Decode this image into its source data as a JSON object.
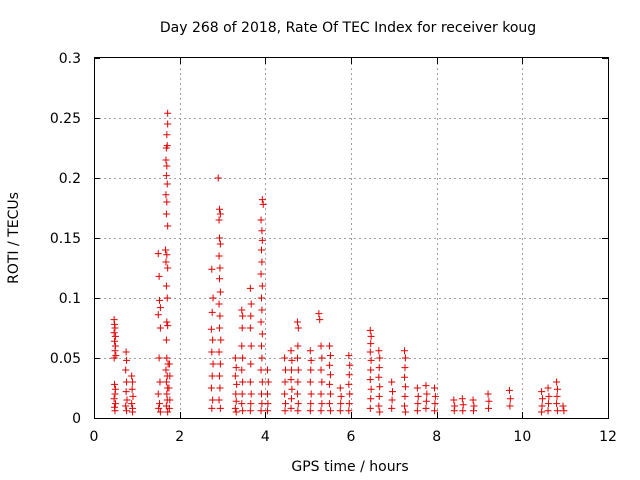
{
  "chart_data": {
    "type": "scatter",
    "title": "Day 268 of 2018, Rate Of TEC Index for receiver koug",
    "xlabel": "GPS time / hours",
    "ylabel": "ROTI / TECUs",
    "xlim": [
      0,
      12
    ],
    "ylim": [
      0,
      0.3
    ],
    "xticks": [
      0,
      2,
      4,
      6,
      8,
      10,
      12
    ],
    "xtick_labels": [
      "0",
      "2",
      "4",
      "6",
      "8",
      "10",
      "12"
    ],
    "yticks": [
      0,
      0.05,
      0.1,
      0.15,
      0.2,
      0.25,
      0.3
    ],
    "ytick_labels": [
      "0",
      "0.05",
      "0.1",
      "0.15",
      "0.2",
      "0.25",
      "0.3"
    ],
    "grid": true,
    "marker": "+",
    "color": "#e00000",
    "series": [
      {
        "name": "ROTI",
        "points": [
          [
            0.47,
            0.082
          ],
          [
            0.48,
            0.078
          ],
          [
            0.49,
            0.075
          ],
          [
            0.47,
            0.071
          ],
          [
            0.5,
            0.068
          ],
          [
            0.48,
            0.064
          ],
          [
            0.5,
            0.06
          ],
          [
            0.49,
            0.056
          ],
          [
            0.51,
            0.052
          ],
          [
            0.47,
            0.05
          ],
          [
            0.48,
            0.028
          ],
          [
            0.5,
            0.024
          ],
          [
            0.49,
            0.02
          ],
          [
            0.47,
            0.016
          ],
          [
            0.5,
            0.012
          ],
          [
            0.48,
            0.009
          ],
          [
            0.49,
            0.006
          ],
          [
            0.75,
            0.055
          ],
          [
            0.76,
            0.048
          ],
          [
            0.74,
            0.04
          ],
          [
            0.76,
            0.03
          ],
          [
            0.75,
            0.022
          ],
          [
            0.77,
            0.015
          ],
          [
            0.74,
            0.01
          ],
          [
            0.76,
            0.006
          ],
          [
            0.88,
            0.035
          ],
          [
            0.9,
            0.03
          ],
          [
            0.89,
            0.024
          ],
          [
            0.91,
            0.018
          ],
          [
            0.88,
            0.012
          ],
          [
            0.9,
            0.008
          ],
          [
            0.9,
            0.005
          ],
          [
            1.5,
            0.137
          ],
          [
            1.52,
            0.118
          ],
          [
            1.53,
            0.098
          ],
          [
            1.55,
            0.092
          ],
          [
            1.5,
            0.086
          ],
          [
            1.55,
            0.075
          ],
          [
            1.52,
            0.05
          ],
          [
            1.54,
            0.03
          ],
          [
            1.5,
            0.02
          ],
          [
            1.53,
            0.012
          ],
          [
            1.51,
            0.008
          ],
          [
            1.55,
            0.005
          ],
          [
            1.72,
            0.254
          ],
          [
            1.72,
            0.245
          ],
          [
            1.7,
            0.236
          ],
          [
            1.71,
            0.227
          ],
          [
            1.69,
            0.225
          ],
          [
            1.68,
            0.215
          ],
          [
            1.7,
            0.21
          ],
          [
            1.69,
            0.202
          ],
          [
            1.71,
            0.195
          ],
          [
            1.68,
            0.186
          ],
          [
            1.7,
            0.18
          ],
          [
            1.69,
            0.17
          ],
          [
            1.72,
            0.16
          ],
          [
            1.67,
            0.14
          ],
          [
            1.7,
            0.136
          ],
          [
            1.68,
            0.13
          ],
          [
            1.72,
            0.125
          ],
          [
            1.69,
            0.11
          ],
          [
            1.71,
            0.1
          ],
          [
            1.7,
            0.08
          ],
          [
            1.72,
            0.077
          ],
          [
            1.69,
            0.065
          ],
          [
            1.7,
            0.05
          ],
          [
            1.73,
            0.045
          ],
          [
            1.68,
            0.04
          ],
          [
            1.71,
            0.035
          ],
          [
            1.69,
            0.03
          ],
          [
            1.72,
            0.025
          ],
          [
            1.7,
            0.02
          ],
          [
            1.71,
            0.015
          ],
          [
            1.69,
            0.01
          ],
          [
            1.72,
            0.005
          ],
          [
            1.76,
            0.045
          ],
          [
            1.77,
            0.035
          ],
          [
            1.75,
            0.025
          ],
          [
            1.77,
            0.015
          ],
          [
            1.76,
            0.008
          ],
          [
            2.75,
            0.124
          ],
          [
            2.78,
            0.1
          ],
          [
            2.76,
            0.088
          ],
          [
            2.74,
            0.074
          ],
          [
            2.77,
            0.065
          ],
          [
            2.75,
            0.055
          ],
          [
            2.78,
            0.045
          ],
          [
            2.76,
            0.035
          ],
          [
            2.74,
            0.025
          ],
          [
            2.77,
            0.015
          ],
          [
            2.75,
            0.008
          ],
          [
            2.9,
            0.2
          ],
          [
            2.93,
            0.174
          ],
          [
            2.95,
            0.17
          ],
          [
            2.92,
            0.165
          ],
          [
            2.93,
            0.15
          ],
          [
            2.95,
            0.145
          ],
          [
            2.92,
            0.135
          ],
          [
            2.94,
            0.125
          ],
          [
            2.93,
            0.116
          ],
          [
            2.95,
            0.105
          ],
          [
            2.92,
            0.095
          ],
          [
            2.94,
            0.085
          ],
          [
            2.93,
            0.075
          ],
          [
            2.96,
            0.065
          ],
          [
            2.92,
            0.055
          ],
          [
            2.95,
            0.045
          ],
          [
            2.93,
            0.035
          ],
          [
            2.94,
            0.025
          ],
          [
            2.92,
            0.015
          ],
          [
            2.95,
            0.008
          ],
          [
            3.3,
            0.05
          ],
          [
            3.32,
            0.042
          ],
          [
            3.3,
            0.035
          ],
          [
            3.33,
            0.028
          ],
          [
            3.31,
            0.02
          ],
          [
            3.32,
            0.014
          ],
          [
            3.3,
            0.008
          ],
          [
            3.32,
            0.005
          ],
          [
            3.45,
            0.09
          ],
          [
            3.47,
            0.085
          ],
          [
            3.46,
            0.075
          ],
          [
            3.45,
            0.06
          ],
          [
            3.47,
            0.05
          ],
          [
            3.45,
            0.04
          ],
          [
            3.47,
            0.03
          ],
          [
            3.46,
            0.02
          ],
          [
            3.45,
            0.012
          ],
          [
            3.47,
            0.006
          ],
          [
            3.65,
            0.108
          ],
          [
            3.67,
            0.095
          ],
          [
            3.66,
            0.085
          ],
          [
            3.65,
            0.075
          ],
          [
            3.67,
            0.06
          ],
          [
            3.66,
            0.045
          ],
          [
            3.65,
            0.03
          ],
          [
            3.67,
            0.02
          ],
          [
            3.66,
            0.012
          ],
          [
            3.65,
            0.006
          ],
          [
            3.93,
            0.182
          ],
          [
            3.95,
            0.178
          ],
          [
            3.9,
            0.165
          ],
          [
            3.92,
            0.156
          ],
          [
            3.93,
            0.148
          ],
          [
            3.91,
            0.14
          ],
          [
            3.92,
            0.13
          ],
          [
            3.9,
            0.12
          ],
          [
            3.93,
            0.11
          ],
          [
            3.91,
            0.1
          ],
          [
            3.92,
            0.09
          ],
          [
            3.9,
            0.08
          ],
          [
            3.93,
            0.07
          ],
          [
            3.91,
            0.06
          ],
          [
            3.92,
            0.05
          ],
          [
            3.9,
            0.04
          ],
          [
            3.93,
            0.03
          ],
          [
            3.91,
            0.02
          ],
          [
            3.92,
            0.012
          ],
          [
            3.9,
            0.006
          ],
          [
            4.05,
            0.04
          ],
          [
            4.07,
            0.03
          ],
          [
            4.05,
            0.02
          ],
          [
            4.06,
            0.012
          ],
          [
            4.05,
            0.006
          ],
          [
            4.45,
            0.05
          ],
          [
            4.47,
            0.04
          ],
          [
            4.46,
            0.03
          ],
          [
            4.45,
            0.02
          ],
          [
            4.47,
            0.012
          ],
          [
            4.46,
            0.006
          ],
          [
            4.6,
            0.056
          ],
          [
            4.62,
            0.048
          ],
          [
            4.61,
            0.04
          ],
          [
            4.6,
            0.032
          ],
          [
            4.62,
            0.024
          ],
          [
            4.61,
            0.016
          ],
          [
            4.6,
            0.008
          ],
          [
            4.75,
            0.08
          ],
          [
            4.77,
            0.075
          ],
          [
            4.76,
            0.06
          ],
          [
            4.75,
            0.05
          ],
          [
            4.77,
            0.04
          ],
          [
            4.76,
            0.03
          ],
          [
            4.75,
            0.02
          ],
          [
            4.77,
            0.012
          ],
          [
            4.76,
            0.006
          ],
          [
            5.05,
            0.056
          ],
          [
            5.07,
            0.048
          ],
          [
            5.06,
            0.04
          ],
          [
            5.05,
            0.03
          ],
          [
            5.07,
            0.02
          ],
          [
            5.06,
            0.012
          ],
          [
            5.05,
            0.006
          ],
          [
            5.25,
            0.087
          ],
          [
            5.27,
            0.082
          ],
          [
            5.3,
            0.06
          ],
          [
            5.32,
            0.05
          ],
          [
            5.3,
            0.04
          ],
          [
            5.32,
            0.03
          ],
          [
            5.3,
            0.02
          ],
          [
            5.32,
            0.012
          ],
          [
            5.3,
            0.006
          ],
          [
            5.5,
            0.06
          ],
          [
            5.52,
            0.052
          ],
          [
            5.5,
            0.044
          ],
          [
            5.52,
            0.036
          ],
          [
            5.5,
            0.028
          ],
          [
            5.52,
            0.02
          ],
          [
            5.5,
            0.012
          ],
          [
            5.52,
            0.006
          ],
          [
            5.75,
            0.025
          ],
          [
            5.77,
            0.018
          ],
          [
            5.76,
            0.012
          ],
          [
            5.75,
            0.006
          ],
          [
            5.95,
            0.052
          ],
          [
            5.97,
            0.044
          ],
          [
            5.96,
            0.036
          ],
          [
            5.95,
            0.028
          ],
          [
            5.97,
            0.02
          ],
          [
            5.96,
            0.012
          ],
          [
            5.95,
            0.006
          ],
          [
            6.45,
            0.073
          ],
          [
            6.47,
            0.068
          ],
          [
            6.46,
            0.062
          ],
          [
            6.45,
            0.055
          ],
          [
            6.47,
            0.048
          ],
          [
            6.46,
            0.04
          ],
          [
            6.45,
            0.032
          ],
          [
            6.47,
            0.024
          ],
          [
            6.46,
            0.016
          ],
          [
            6.45,
            0.008
          ],
          [
            6.65,
            0.056
          ],
          [
            6.67,
            0.05
          ],
          [
            6.66,
            0.042
          ],
          [
            6.65,
            0.034
          ],
          [
            6.67,
            0.026
          ],
          [
            6.66,
            0.018
          ],
          [
            6.65,
            0.01
          ],
          [
            6.67,
            0.005
          ],
          [
            6.95,
            0.03
          ],
          [
            6.97,
            0.022
          ],
          [
            6.96,
            0.015
          ],
          [
            6.95,
            0.008
          ],
          [
            7.25,
            0.056
          ],
          [
            7.27,
            0.05
          ],
          [
            7.26,
            0.042
          ],
          [
            7.25,
            0.034
          ],
          [
            7.27,
            0.026
          ],
          [
            7.26,
            0.018
          ],
          [
            7.25,
            0.01
          ],
          [
            7.27,
            0.005
          ],
          [
            7.55,
            0.025
          ],
          [
            7.57,
            0.018
          ],
          [
            7.56,
            0.012
          ],
          [
            7.55,
            0.006
          ],
          [
            7.75,
            0.027
          ],
          [
            7.77,
            0.02
          ],
          [
            7.76,
            0.014
          ],
          [
            7.75,
            0.008
          ],
          [
            7.95,
            0.025
          ],
          [
            7.97,
            0.018
          ],
          [
            7.96,
            0.012
          ],
          [
            7.95,
            0.006
          ],
          [
            8.4,
            0.015
          ],
          [
            8.42,
            0.01
          ],
          [
            8.41,
            0.006
          ],
          [
            8.6,
            0.016
          ],
          [
            8.62,
            0.011
          ],
          [
            8.61,
            0.006
          ],
          [
            8.85,
            0.015
          ],
          [
            8.87,
            0.01
          ],
          [
            8.86,
            0.006
          ],
          [
            9.2,
            0.02
          ],
          [
            9.22,
            0.014
          ],
          [
            9.21,
            0.008
          ],
          [
            9.7,
            0.023
          ],
          [
            9.72,
            0.016
          ],
          [
            9.71,
            0.01
          ],
          [
            10.45,
            0.022
          ],
          [
            10.47,
            0.016
          ],
          [
            10.46,
            0.01
          ],
          [
            10.45,
            0.005
          ],
          [
            10.6,
            0.025
          ],
          [
            10.62,
            0.018
          ],
          [
            10.61,
            0.012
          ],
          [
            10.6,
            0.006
          ],
          [
            10.8,
            0.03
          ],
          [
            10.82,
            0.024
          ],
          [
            10.81,
            0.018
          ],
          [
            10.8,
            0.012
          ],
          [
            10.82,
            0.006
          ],
          [
            10.95,
            0.01
          ],
          [
            10.97,
            0.006
          ]
        ]
      }
    ]
  }
}
